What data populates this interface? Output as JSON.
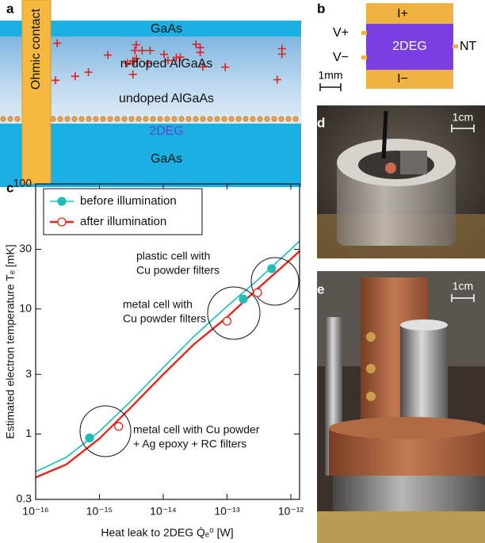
{
  "panel_a": {
    "label": "a",
    "layers": [
      "GaAs",
      "n-doped AlGaAs",
      "undoped AlGaAs",
      "2DEG",
      "GaAs"
    ],
    "contact": "Ohmic contact"
  },
  "panel_b": {
    "label": "b",
    "top": "I+",
    "bottom": "I−",
    "center": "2DEG",
    "left_top": "V+",
    "left_bottom": "V−",
    "right": "NT",
    "scale": "1mm"
  },
  "panel_d": {
    "label": "d",
    "scale": "1cm"
  },
  "panel_e": {
    "label": "e",
    "scale": "1cm"
  },
  "chart_data": {
    "type": "line",
    "panel_label": "c",
    "x_label": "Heat leak to 2DEG Q̇ₑ⁰ [W]",
    "y_label": "Estimated electron temperature Tₑ [mK]",
    "log_x": true,
    "log_y": true,
    "xlim": [
      1e-16,
      1.37e-12
    ],
    "ylim": [
      0.3,
      100
    ],
    "xticks": [
      {
        "value": 1e-16,
        "label": "10⁻¹⁶"
      },
      {
        "value": 1e-15,
        "label": "10⁻¹⁵"
      },
      {
        "value": 1e-14,
        "label": "10⁻¹⁴"
      },
      {
        "value": 1e-13,
        "label": "10⁻¹³"
      },
      {
        "value": 1e-12,
        "label": "10⁻¹²"
      }
    ],
    "yticks": [
      0.3,
      1,
      3,
      10,
      30,
      100
    ],
    "legend": "upper left",
    "series": [
      {
        "name": "before illumination",
        "color": "#20bdb5",
        "marker": "filled",
        "x": [
          7e-16,
          1.8e-13,
          5e-13
        ],
        "values": [
          0.93,
          12,
          21
        ],
        "fit": {
          "x": [
            1e-16,
            3e-16,
            1e-15,
            3e-15,
            1e-14,
            3e-14,
            1e-13,
            3e-13,
            1e-12,
            1.37e-12
          ],
          "values": [
            0.5,
            0.65,
            1.05,
            1.8,
            3.4,
            6,
            10.5,
            17,
            30,
            35
          ]
        }
      },
      {
        "name": "after illumination",
        "color": "#e8261c",
        "marker": "open",
        "x": [
          2e-15,
          1e-13,
          3e-13
        ],
        "values": [
          1.15,
          8,
          13.5
        ],
        "fit": {
          "x": [
            1e-16,
            3e-16,
            1e-15,
            3e-15,
            1e-14,
            3e-14,
            1e-13,
            3e-13,
            1e-12,
            1.37e-12
          ],
          "values": [
            0.45,
            0.57,
            0.92,
            1.6,
            3.0,
            5.2,
            8.6,
            14.5,
            25,
            29
          ]
        }
      }
    ],
    "annotations": [
      [
        "plastic cell with",
        "Cu powder filters"
      ],
      [
        "metal cell with",
        "Cu powder filters"
      ],
      [
        "metal cell with Cu powder",
        "+ Ag epoxy + RC filters"
      ]
    ]
  }
}
